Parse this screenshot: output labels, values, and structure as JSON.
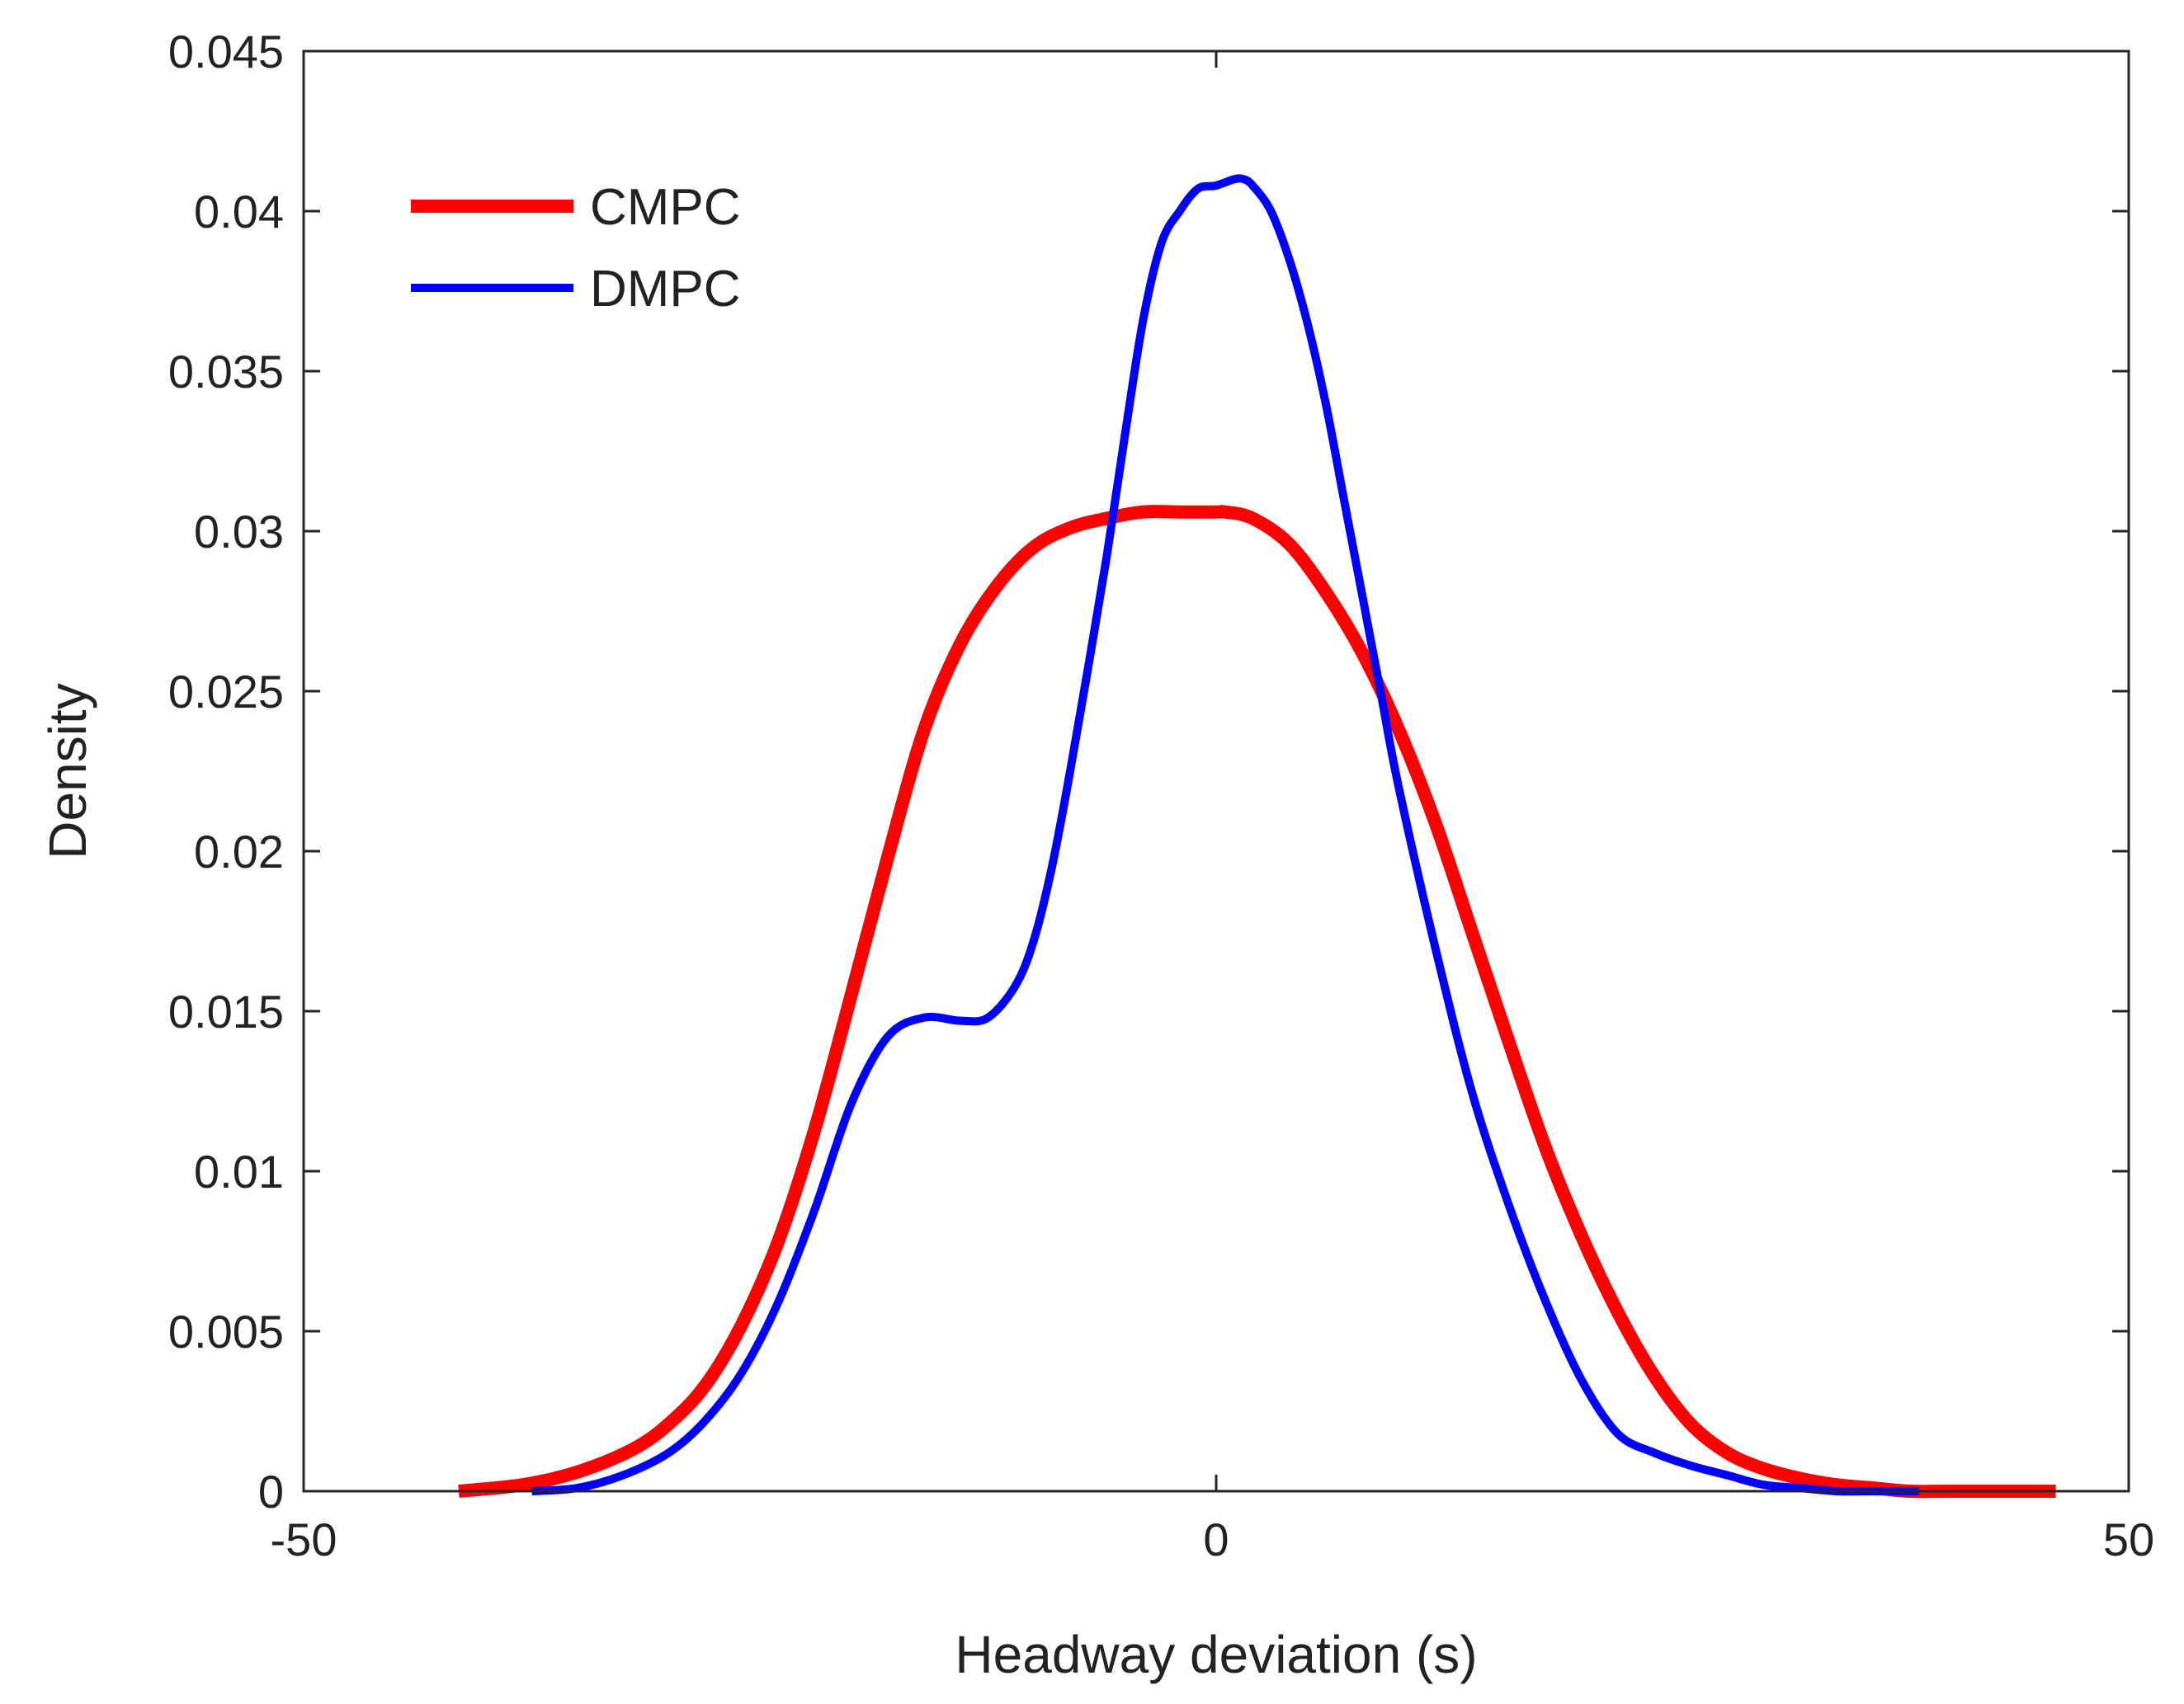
{
  "chart_data": {
    "type": "line",
    "title": "",
    "xlabel": "Headway deviation (s)",
    "ylabel": "Density",
    "xlim": [
      -50,
      50
    ],
    "ylim": [
      0,
      0.045
    ],
    "grid": false,
    "legend_position": "top-left",
    "x_ticks": [
      -50,
      0,
      50
    ],
    "x_tick_labels": [
      "-50",
      "0",
      "50"
    ],
    "y_ticks": [
      0,
      0.005,
      0.01,
      0.015,
      0.02,
      0.025,
      0.03,
      0.035,
      0.04,
      0.045
    ],
    "y_tick_labels": [
      "0",
      "0.005",
      "0.01",
      "0.015",
      "0.02",
      "0.025",
      "0.03",
      "0.035",
      "0.04",
      "0.045"
    ],
    "series": [
      {
        "name": "CMPC",
        "color": "#ff0000",
        "x": [
          -41.5,
          -38,
          -35,
          -32,
          -30,
          -28,
          -26,
          -24,
          -22,
          -20,
          -18,
          -16,
          -14,
          -12,
          -10,
          -8,
          -6,
          -4,
          -2,
          0,
          0.5,
          2,
          4,
          6,
          8,
          10,
          12,
          14,
          16,
          18,
          20,
          22,
          24,
          26,
          28,
          30,
          32,
          34,
          36,
          38,
          40,
          42,
          44,
          46
        ],
        "y": [
          0.0,
          0.0002,
          0.0006,
          0.0013,
          0.0021,
          0.0033,
          0.0052,
          0.0078,
          0.0113,
          0.0155,
          0.0198,
          0.0238,
          0.0265,
          0.0283,
          0.0295,
          0.0301,
          0.0304,
          0.0306,
          0.0306,
          0.0306,
          0.0306,
          0.0304,
          0.0296,
          0.0281,
          0.0262,
          0.0238,
          0.0209,
          0.0175,
          0.0141,
          0.0108,
          0.008,
          0.0056,
          0.0036,
          0.0021,
          0.0012,
          0.0007,
          0.0004,
          0.0002,
          0.0001,
          0.0,
          0.0,
          0.0,
          0.0,
          0.0
        ]
      },
      {
        "name": "DMPC",
        "color": "#0000ff",
        "x": [
          -37.5,
          -35,
          -32.5,
          -30,
          -28,
          -26,
          -24,
          -22,
          -20,
          -18,
          -16,
          -14,
          -12.5,
          -11,
          -10,
          -9,
          -8,
          -7,
          -6,
          -5,
          -4,
          -3,
          -2,
          -1,
          0,
          1,
          1.5,
          2,
          3,
          4,
          5,
          6,
          7,
          8,
          9,
          10,
          12,
          14,
          16,
          18,
          20,
          22,
          24,
          26,
          28,
          30,
          32,
          34,
          36,
          38.5
        ],
        "y": [
          0.0,
          0.0001,
          0.0005,
          0.0012,
          0.0022,
          0.0037,
          0.0059,
          0.0088,
          0.0121,
          0.0142,
          0.0148,
          0.0147,
          0.0148,
          0.0158,
          0.0172,
          0.0195,
          0.0225,
          0.0258,
          0.0292,
          0.033,
          0.0366,
          0.039,
          0.04,
          0.0407,
          0.0408,
          0.041,
          0.041,
          0.0408,
          0.04,
          0.0385,
          0.0365,
          0.034,
          0.031,
          0.028,
          0.025,
          0.022,
          0.017,
          0.0125,
          0.009,
          0.006,
          0.0035,
          0.0018,
          0.0012,
          0.0008,
          0.0005,
          0.0002,
          0.0001,
          0.0,
          0.0,
          0.0
        ]
      }
    ]
  }
}
